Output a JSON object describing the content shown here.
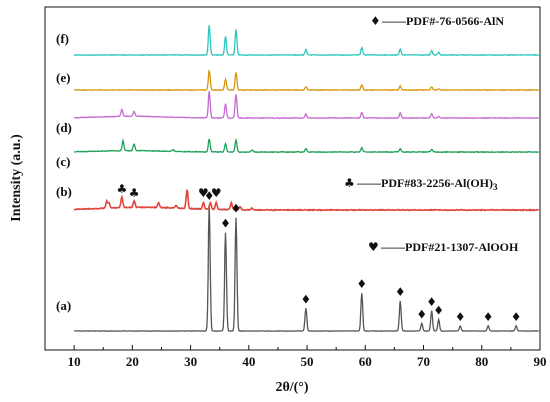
{
  "chart_data": {
    "type": "line",
    "title": "",
    "xlabel": "2θ/(°)",
    "ylabel": "Intensity (a.u.)",
    "xlim": [
      5,
      90
    ],
    "x_ticks": [
      "10",
      "20",
      "30",
      "40",
      "50",
      "60",
      "70",
      "80",
      "90"
    ],
    "y_ticks_shown": false,
    "grid": false,
    "peak_width_deg": 0.22,
    "series": [
      {
        "name": "(a)",
        "color": "#555555",
        "peaks": [
          [
            33.2,
            1.0
          ],
          [
            36.0,
            0.78
          ],
          [
            37.8,
            0.9
          ],
          [
            49.8,
            0.18
          ],
          [
            59.4,
            0.3
          ],
          [
            66.0,
            0.24
          ],
          [
            69.7,
            0.06
          ],
          [
            71.4,
            0.16
          ],
          [
            72.6,
            0.09
          ],
          [
            76.3,
            0.04
          ],
          [
            81.1,
            0.04
          ],
          [
            85.9,
            0.04
          ]
        ]
      },
      {
        "name": "(b)",
        "color": "#e0463c",
        "peaks": [
          [
            15.6,
            0.2
          ],
          [
            16.0,
            0.15
          ],
          [
            18.2,
            0.32
          ],
          [
            20.3,
            0.2
          ],
          [
            24.5,
            0.15
          ],
          [
            27.5,
            0.08
          ],
          [
            29.4,
            0.55
          ],
          [
            32.2,
            0.2
          ],
          [
            33.4,
            0.18
          ],
          [
            34.4,
            0.2
          ],
          [
            37.0,
            0.2
          ],
          [
            38.5,
            0.1
          ],
          [
            40.5,
            0.05
          ]
        ]
      },
      {
        "name": "(c)",
        "color": "#1ea05a",
        "peaks": [
          [
            18.4,
            0.45
          ],
          [
            20.3,
            0.3
          ],
          [
            27.0,
            0.08
          ],
          [
            33.2,
            0.6
          ],
          [
            36.0,
            0.38
          ],
          [
            37.8,
            0.55
          ],
          [
            40.6,
            0.1
          ],
          [
            49.8,
            0.15
          ],
          [
            59.4,
            0.2
          ],
          [
            66.0,
            0.15
          ],
          [
            71.4,
            0.12
          ]
        ]
      },
      {
        "name": "(d)",
        "color": "#c46ad0",
        "peaks": [
          [
            18.2,
            0.25
          ],
          [
            20.3,
            0.18
          ],
          [
            33.2,
            0.95
          ],
          [
            36.0,
            0.5
          ],
          [
            37.8,
            0.85
          ],
          [
            49.8,
            0.15
          ],
          [
            59.4,
            0.2
          ],
          [
            66.0,
            0.18
          ],
          [
            71.4,
            0.15
          ],
          [
            72.6,
            0.06
          ]
        ]
      },
      {
        "name": "(e)",
        "color": "#d8960a",
        "peaks": [
          [
            33.2,
            0.9
          ],
          [
            36.0,
            0.5
          ],
          [
            37.8,
            0.8
          ],
          [
            49.8,
            0.15
          ],
          [
            59.4,
            0.22
          ],
          [
            66.0,
            0.18
          ],
          [
            71.4,
            0.15
          ],
          [
            72.6,
            0.06
          ]
        ]
      },
      {
        "name": "(f)",
        "color": "#2cc7c0",
        "peaks": [
          [
            33.2,
            1.0
          ],
          [
            36.0,
            0.62
          ],
          [
            37.8,
            0.85
          ],
          [
            49.8,
            0.18
          ],
          [
            59.4,
            0.25
          ],
          [
            66.0,
            0.2
          ],
          [
            71.4,
            0.15
          ],
          [
            72.6,
            0.08
          ]
        ]
      }
    ],
    "annotations": {
      "aln_symbol": "♦",
      "alooh_symbol": "♥",
      "aloh3_symbol": "♣",
      "aln_legend": "——PDF#-76-0566-AlN",
      "aloh3_legend": "——PDF#83-2256-Al(OH)",
      "aloh3_legend_sub": "3",
      "alooh_legend": "——PDF#21-1307-AlOOH",
      "alooh_markers_on_a": [
        33.2,
        36.0,
        37.8,
        49.8,
        59.4,
        66.0,
        69.7,
        71.4,
        72.6,
        76.3,
        81.1,
        85.9
      ],
      "aloh3_markers_on_b": [
        18.2,
        20.3
      ],
      "alooh_markers_on_b": [
        32.2,
        34.4
      ]
    }
  }
}
